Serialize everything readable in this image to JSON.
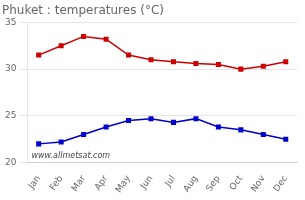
{
  "chart_data": {
    "type": "line",
    "title": "Phuket : temperatures (°C)",
    "categories": [
      "Jan",
      "Feb",
      "Mar",
      "Apr",
      "May",
      "Jun",
      "Jul",
      "Aug",
      "Sep",
      "Oct",
      "Nov",
      "Dec"
    ],
    "series": [
      {
        "color": "#cc0000",
        "marker": "square",
        "values": [
          31.5,
          32.5,
          33.5,
          33.2,
          31.5,
          31.0,
          30.8,
          30.6,
          30.5,
          30.0,
          30.3,
          30.8
        ]
      },
      {
        "color": "#0000cc",
        "marker": "square",
        "values": [
          22.0,
          22.2,
          23.0,
          23.8,
          24.5,
          24.7,
          24.3,
          24.7,
          23.8,
          23.5,
          23.0,
          22.5
        ]
      }
    ],
    "ylim": [
      20,
      35
    ],
    "yticks": [
      20,
      25,
      30,
      35
    ],
    "grid": true,
    "annotations": [
      "www.allmetsat.com"
    ]
  }
}
